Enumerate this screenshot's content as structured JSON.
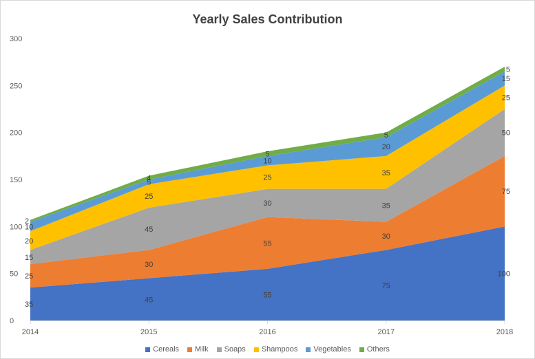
{
  "chart_data": {
    "type": "area",
    "stacked": true,
    "title": "Yearly Sales Contribution",
    "xlabel": "",
    "ylabel": "",
    "categories": [
      "2014",
      "2015",
      "2016",
      "2017",
      "2018"
    ],
    "ylim": [
      0,
      300
    ],
    "yticks": [
      0,
      50,
      100,
      150,
      200,
      250,
      300
    ],
    "grid": false,
    "legend": "bottom",
    "series": [
      {
        "name": "Cereals",
        "color": "#4472C4",
        "values": [
          35,
          45,
          55,
          75,
          100
        ]
      },
      {
        "name": "Milk",
        "color": "#ED7D31",
        "values": [
          25,
          30,
          55,
          30,
          75
        ]
      },
      {
        "name": "Soaps",
        "color": "#A5A5A5",
        "values": [
          15,
          45,
          30,
          35,
          50
        ]
      },
      {
        "name": "Shampoos",
        "color": "#FFC000",
        "values": [
          20,
          25,
          25,
          35,
          25
        ]
      },
      {
        "name": "Vegetables",
        "color": "#5B9BD5",
        "values": [
          10,
          5,
          10,
          20,
          15
        ]
      },
      {
        "name": "Others",
        "color": "#70AD47",
        "values": [
          2,
          4,
          5,
          5,
          5
        ]
      }
    ]
  }
}
